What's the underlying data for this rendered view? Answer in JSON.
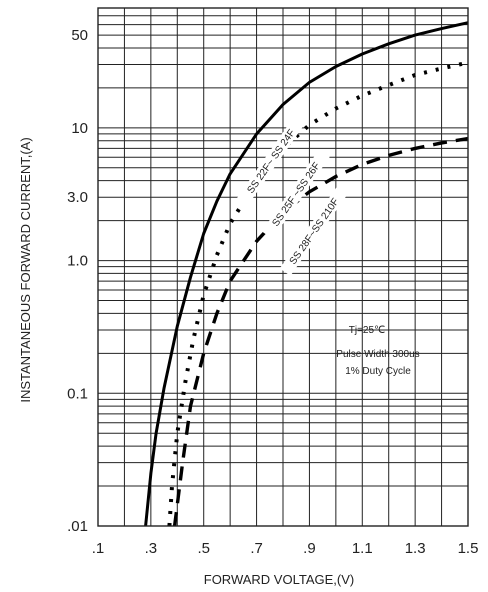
{
  "chart_data": {
    "type": "line",
    "xlabel": "FORWARD VOLTAGE,(V)",
    "ylabel": "INSTANTANEOUS FORWARD CURRENT,(A)",
    "xlim": [
      0.1,
      1.5
    ],
    "ylim": [
      0.01,
      80
    ],
    "y_scale": "log",
    "grid": true,
    "x_ticks": [
      {
        "value": 0.1,
        "label": ".1"
      },
      {
        "value": 0.3,
        "label": ".3"
      },
      {
        "value": 0.5,
        "label": ".5"
      },
      {
        "value": 0.7,
        "label": ".7"
      },
      {
        "value": 0.9,
        "label": ".9"
      },
      {
        "value": 1.1,
        "label": "1.1"
      },
      {
        "value": 1.3,
        "label": "1.3"
      },
      {
        "value": 1.5,
        "label": "1.5"
      }
    ],
    "y_ticks": [
      {
        "value": 0.01,
        "label": ".01"
      },
      {
        "value": 0.1,
        "label": "0.1"
      },
      {
        "value": 1.0,
        "label": "1.0"
      },
      {
        "value": 3.0,
        "label": "3.0"
      },
      {
        "value": 10,
        "label": "10"
      },
      {
        "value": 50,
        "label": "50"
      }
    ],
    "annotations": [
      "Tj=25℃",
      "Pulse Width 300us",
      "1% Duty Cycle"
    ],
    "series": [
      {
        "name": "SS 22F~ SS 24F",
        "style": "solid",
        "x": [
          0.28,
          0.3,
          0.32,
          0.35,
          0.4,
          0.45,
          0.5,
          0.55,
          0.6,
          0.7,
          0.8,
          0.9,
          1.0,
          1.1,
          1.2,
          1.3,
          1.4,
          1.5
        ],
        "y": [
          0.01,
          0.025,
          0.05,
          0.11,
          0.32,
          0.75,
          1.6,
          2.8,
          4.5,
          9.0,
          15,
          22,
          29,
          36,
          43,
          50,
          56,
          62
        ]
      },
      {
        "name": "SS 25F ~SS 26F",
        "style": "dotted",
        "x": [
          0.37,
          0.38,
          0.4,
          0.43,
          0.46,
          0.5,
          0.55,
          0.6,
          0.7,
          0.8,
          0.9,
          1.0,
          1.1,
          1.2,
          1.3,
          1.4,
          1.5
        ],
        "y": [
          0.01,
          0.02,
          0.05,
          0.12,
          0.25,
          0.55,
          1.1,
          1.9,
          4.0,
          7.0,
          10.5,
          14,
          17.5,
          21,
          25,
          28,
          31
        ]
      },
      {
        "name": "SS 28F~SS 210F",
        "style": "dashed",
        "x": [
          0.39,
          0.42,
          0.45,
          0.5,
          0.55,
          0.6,
          0.7,
          0.8,
          0.9,
          1.0,
          1.1,
          1.2,
          1.3,
          1.4,
          1.5
        ],
        "y": [
          0.01,
          0.03,
          0.08,
          0.2,
          0.4,
          0.7,
          1.4,
          2.3,
          3.3,
          4.3,
          5.3,
          6.2,
          7.0,
          7.7,
          8.3
        ]
      }
    ]
  }
}
